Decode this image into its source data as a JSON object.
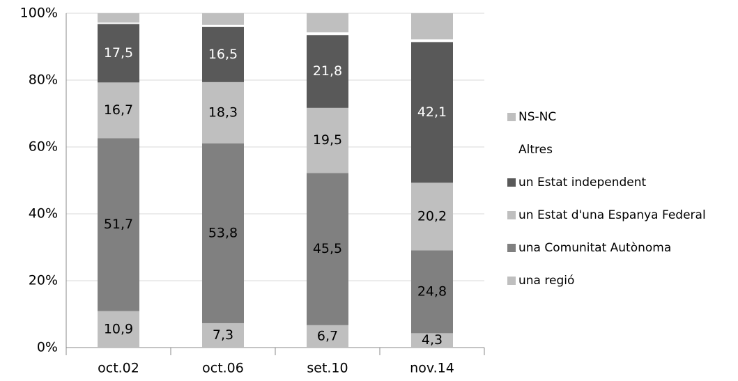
{
  "chart_data": {
    "type": "stacked_bar",
    "categories": [
      "oct.02",
      "oct.06",
      "set.10",
      "nov.14"
    ],
    "ylim": [
      0,
      100
    ],
    "yticks": [
      {
        "value": 0,
        "label": "0%"
      },
      {
        "value": 20,
        "label": "20%"
      },
      {
        "value": 40,
        "label": "40%"
      },
      {
        "value": 60,
        "label": "60%"
      },
      {
        "value": 80,
        "label": "80%"
      },
      {
        "value": 100,
        "label": "100%"
      }
    ],
    "grid": true,
    "legend": "right",
    "series": [
      {
        "name": "una regió",
        "color": "#bfbfbf",
        "label_color": "#000000",
        "values": [
          10.9,
          7.3,
          6.7,
          4.3
        ],
        "value_labels": [
          "10,9",
          "7,3",
          "6,7",
          "4,3"
        ]
      },
      {
        "name": "una Comunitat Autònoma",
        "color": "#808080",
        "label_color": "#000000",
        "values": [
          51.7,
          53.8,
          45.5,
          24.8
        ],
        "value_labels": [
          "51,7",
          "53,8",
          "45,5",
          "24,8"
        ]
      },
      {
        "name": "un Estat d'una Espanya Federal",
        "color": "#bfbfbf",
        "label_color": "#000000",
        "values": [
          16.7,
          18.3,
          19.5,
          20.2
        ],
        "value_labels": [
          "16,7",
          "18,3",
          "19,5",
          "20,2"
        ]
      },
      {
        "name": "un Estat independent",
        "color": "#595959",
        "label_color": "#ffffff",
        "values": [
          17.5,
          16.5,
          21.8,
          42.1
        ],
        "value_labels": [
          "17,5",
          "16,5",
          "21,8",
          "42,1"
        ]
      },
      {
        "name": "Altres",
        "color": "#ffffff",
        "values": [
          0.4,
          0.6,
          0.8,
          0.8
        ]
      },
      {
        "name": "NS-NC",
        "color": "#bfbfbf",
        "values": [
          2.8,
          3.5,
          5.7,
          7.8
        ]
      }
    ]
  }
}
